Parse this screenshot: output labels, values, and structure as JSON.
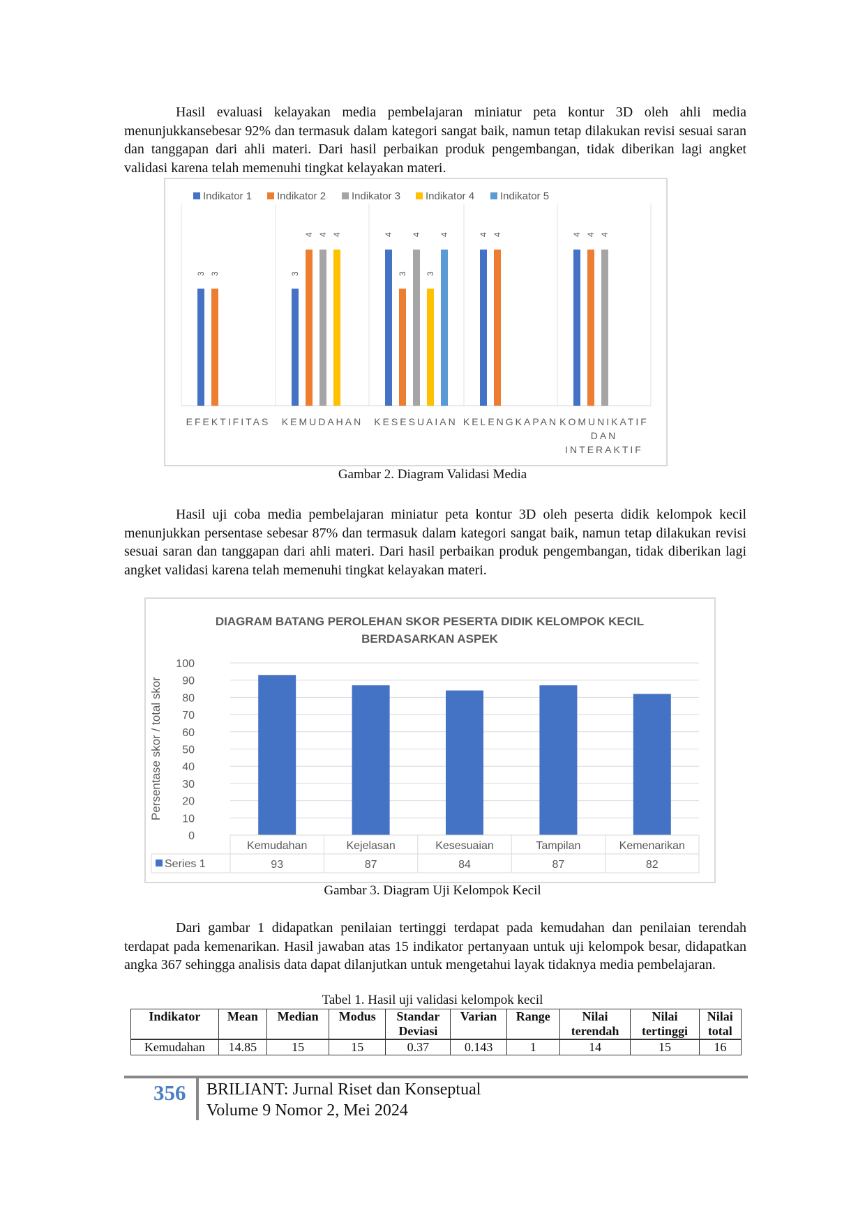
{
  "paragraphs": [
    "Hasil evaluasi kelayakan media pembelajaran miniatur peta kontur 3D oleh ahli media menunjukkansebesar 92% dan termasuk dalam kategori sangat baik, namun tetap dilakukan revisi sesuai saran dan tanggapan dari ahli materi. Dari hasil perbaikan produk pengembangan, tidak diberikan lagi angket validasi karena telah memenuhi tingkat kelayakan materi.",
    "Hasil uji coba media pembelajaran miniatur peta kontur 3D oleh peserta didik kelompok kecil menunjukkan persentase sebesar 87% dan termasuk dalam kategori sangat baik, namun tetap dilakukan revisi sesuai saran dan tanggapan dari ahli materi. Dari hasil perbaikan produk pengembangan, tidak diberikan lagi angket validasi karena telah memenuhi tingkat kelayakan materi.",
    "Dari gambar 1 didapatkan penilaian tertinggi terdapat pada kemudahan dan penilaian terendah terdapat pada kemenarikan. Hasil jawaban atas 15 indikator pertanyaan untuk uji kelompok besar, didapatkan angka 367 sehingga analisis data dapat dilanjutkan untuk mengetahui layak tidaknya media pembelajaran."
  ],
  "captions": {
    "fig2": "Gambar 2. Diagram Validasi Media",
    "fig3": "Gambar 3.  Diagram Uji Kelompok Kecil",
    "table1": "Tabel 1. Hasil uji validasi kelompok kecil"
  },
  "chart_data": [
    {
      "type": "bar",
      "title": "",
      "categories": [
        "EFEKTIFITAS",
        "KEMUDAHAN",
        "KESESUAIAN",
        "KELENGKAPAN",
        "KOMUNIKATIF DAN INTERAKTIF"
      ],
      "series": [
        {
          "name": "Indikator 1",
          "color": "#4472c4",
          "values": [
            3,
            3,
            4,
            4,
            4
          ]
        },
        {
          "name": "Indikator 2",
          "color": "#ed7d31",
          "values": [
            3,
            4,
            3,
            4,
            4
          ]
        },
        {
          "name": "Indikator 3",
          "color": "#a5a5a5",
          "values": [
            null,
            4,
            4,
            null,
            4
          ]
        },
        {
          "name": "Indikator 4",
          "color": "#ffc000",
          "values": [
            null,
            4,
            3,
            null,
            null
          ]
        },
        {
          "name": "Indikator 5",
          "color": "#5b9bd5",
          "values": [
            null,
            null,
            4,
            null,
            null
          ]
        }
      ],
      "legend": "top",
      "ylim": [
        0,
        4
      ]
    },
    {
      "type": "bar",
      "title": "DIAGRAM BATANG PEROLEHAN SKOR PESERTA DIDIK KELOMPOK KECIL BERDASARKAN ASPEK",
      "title_lines": [
        "DIAGRAM BATANG PEROLEHAN SKOR PESERTA DIDIK KELOMPOK KECIL",
        "BERDASARKAN ASPEK"
      ],
      "categories": [
        "Kemudahan",
        "Kejelasan",
        "Kesesuaian",
        "Tampilan",
        "Kemenarikan"
      ],
      "series": [
        {
          "name": "Series 1",
          "color": "#4472c4",
          "values": [
            93,
            87,
            84,
            87,
            82
          ]
        }
      ],
      "ylabel": "Persentase skor / total skor",
      "ylim": [
        0,
        100
      ],
      "yticks": [
        0,
        10,
        20,
        30,
        40,
        50,
        60,
        70,
        80,
        90,
        100
      ],
      "grid": true,
      "legend": "data-table"
    }
  ],
  "table": {
    "headers": [
      [
        "Indikator"
      ],
      [
        "Mean"
      ],
      [
        "Median"
      ],
      [
        "Modus"
      ],
      [
        "Standar",
        "Deviasi"
      ],
      [
        "Varian"
      ],
      [
        "Range"
      ],
      [
        "Nilai",
        "terendah"
      ],
      [
        "Nilai",
        "tertinggi"
      ],
      [
        "Nilai",
        "total"
      ]
    ],
    "rows": [
      [
        "Kemudahan",
        "14.85",
        "15",
        "15",
        "0.37",
        "0.143",
        "1",
        "14",
        "15",
        "16"
      ]
    ]
  },
  "footer": {
    "page": "356",
    "journal": "BRILIANT: Jurnal Riset dan Konseptual",
    "issue": "Volume 9 Nomor 2, Mei 2024"
  }
}
